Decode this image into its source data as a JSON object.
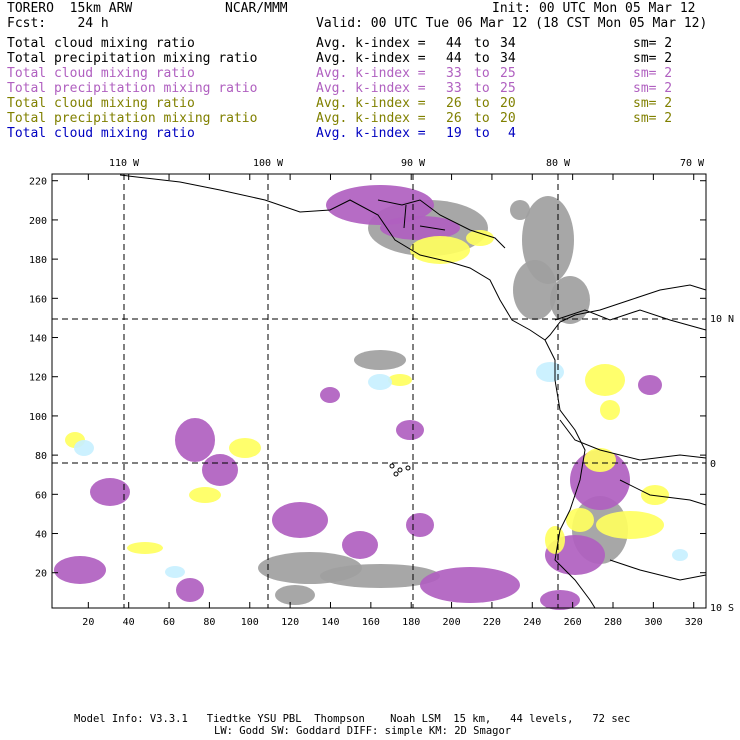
{
  "header": {
    "model": "TORERO  15km ARW",
    "forecast": "Fcst:    24 h",
    "center": "NCAR/MMM",
    "init": "Init: 00 UTC Mon 05 Mar 12",
    "valid": "Valid: 00 UTC Tue 06 Mar 12 (18 CST Mon 05 Mar 12)"
  },
  "legend": [
    {
      "field": "Total cloud mixing ratio",
      "stat": "Avg. k-index =",
      "max": "44",
      "to": "to",
      "min": "34",
      "sm": "sm= 2",
      "color": "#000000"
    },
    {
      "field": "Total precipitation mixing ratio",
      "stat": "Avg. k-index =",
      "max": "44",
      "to": "to",
      "min": "34",
      "sm": "sm= 2",
      "color": "#000000"
    },
    {
      "field": "Total cloud mixing ratio",
      "stat": "Avg. k-index =",
      "max": "33",
      "to": "to",
      "min": "25",
      "sm": "sm= 2",
      "color": "#b060c0"
    },
    {
      "field": "Total precipitation mixing ratio",
      "stat": "Avg. k-index =",
      "max": "33",
      "to": "to",
      "min": "25",
      "sm": "sm= 2",
      "color": "#b060c0"
    },
    {
      "field": "Total cloud mixing ratio",
      "stat": "Avg. k-index =",
      "max": "26",
      "to": "to",
      "min": "20",
      "sm": "sm= 2",
      "color": "#808000"
    },
    {
      "field": "Total precipitation mixing ratio",
      "stat": "Avg. k-index =",
      "max": "26",
      "to": "to",
      "min": "20",
      "sm": "sm= 2",
      "color": "#808000"
    },
    {
      "field": "Total cloud mixing ratio",
      "stat": "Avg. k-index =",
      "max": "19",
      "to": "to",
      "min": "4",
      "sm": "",
      "color": "#0000c0"
    }
  ],
  "map": {
    "top_longitudes": [
      "110 W",
      "100 W",
      "90 W",
      "80 W",
      "70 W"
    ],
    "right_latitudes": [
      "10 N",
      "0",
      "10 S"
    ],
    "y_ticks": [
      "220",
      "200",
      "180",
      "160",
      "140",
      "120",
      "100",
      "80",
      "60",
      "40",
      "20"
    ],
    "x_ticks": [
      "20",
      "40",
      "60",
      "80",
      "100",
      "120",
      "140",
      "160",
      "180",
      "200",
      "220",
      "240",
      "260",
      "280",
      "300",
      "320"
    ],
    "colors": {
      "gray": "#a0a0a0",
      "purple": "#b060c0",
      "yellow": "#ffff60",
      "lightblue": "#c8f0ff",
      "coast": "#000000"
    }
  },
  "footer": {
    "line1": "Model Info: V3.3.1   Tiedtke YSU PBL  Thompson    Noah LSM  15 km,   44 levels,   72 sec",
    "line2": "LW: Godd SW: Goddard DIFF: simple KM: 2D Smagor"
  }
}
